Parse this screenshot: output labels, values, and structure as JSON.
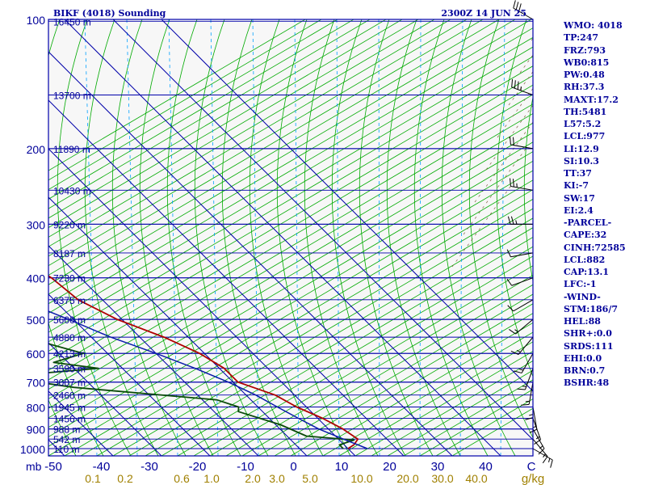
{
  "header": {
    "station": "BIKF (4018) Sounding",
    "valid_time": "2300Z 14 JUN 25"
  },
  "indices": [
    "WMO: 4018",
    "TP:247",
    "FRZ:793",
    "WB0:815",
    "PW:0.48",
    "RH:37.3",
    "MAXT:17.2",
    "TH:5481",
    "L57:5.2",
    "LCL:977",
    "LI:12.9",
    "SI:10.3",
    "TT:37",
    "KI:-7",
    "SW:17",
    "EI:2.4",
    "-PARCEL-",
    "CAPE:32",
    "CINH:72585",
    "LCL:882",
    "CAP:13.1",
    "LFC:-1",
    "-WIND-",
    "STM:186/7",
    "HEL:88",
    "SHR+:0.0",
    "SRDS:111",
    "EHI:0.0",
    "BRN:0.7",
    "BSHR:48"
  ],
  "chart_data": {
    "type": "line",
    "title": "BIKF (4018) Sounding",
    "subtitle": "2300Z 14 JUN 25",
    "pressure_unit_label": "mb",
    "temp_axis_unit": "C",
    "mixing_ratio_unit": "g/kg",
    "pressure_ticks": [
      100,
      200,
      300,
      400,
      500,
      600,
      700,
      800,
      900,
      1000
    ],
    "temp_ticks": [
      -50,
      -40,
      -30,
      -20,
      -10,
      0,
      10,
      20,
      30,
      40
    ],
    "temp_range": [
      -50,
      50
    ],
    "mixing_ratio_labels": [
      "0.1",
      "0.2",
      "0.6",
      "1.0",
      "2.0",
      "3.0",
      "5.0",
      "10.0",
      "20.0",
      "30.0",
      "40.0"
    ],
    "height_levels": [
      {
        "p": 101,
        "label": "16450 m"
      },
      {
        "p": 150,
        "label": "13700 m"
      },
      {
        "p": 200,
        "label": "11890 m"
      },
      {
        "p": 250,
        "label": "10430 m"
      },
      {
        "p": 300,
        "label": "9220 m"
      },
      {
        "p": 350,
        "label": "8187 m"
      },
      {
        "p": 400,
        "label": "7230 m"
      },
      {
        "p": 450,
        "label": "6375 m"
      },
      {
        "p": 500,
        "label": "5600 m"
      },
      {
        "p": 550,
        "label": "4880 m"
      },
      {
        "p": 600,
        "label": "4213 m"
      },
      {
        "p": 650,
        "label": "3590 m"
      },
      {
        "p": 700,
        "label": "3007 m"
      },
      {
        "p": 750,
        "label": "2460 m"
      },
      {
        "p": 800,
        "label": "1945 m"
      },
      {
        "p": 850,
        "label": "1456 m"
      },
      {
        "p": 900,
        "label": "988 m"
      },
      {
        "p": 950,
        "label": "542 m"
      },
      {
        "p": 1000,
        "label": "110 m"
      }
    ],
    "series": [
      {
        "role": "temperature",
        "color": "#b00000",
        "points": [
          [
            -17,
            100
          ],
          [
            -21,
            120
          ],
          [
            -23,
            135
          ],
          [
            -24,
            150
          ],
          [
            -28,
            200
          ],
          [
            -30,
            250
          ],
          [
            -23,
            300
          ],
          [
            -19,
            350
          ],
          [
            -16,
            400
          ],
          [
            -15,
            450
          ],
          [
            -11,
            500
          ],
          [
            -5,
            550
          ],
          [
            -1,
            600
          ],
          [
            1,
            650
          ],
          [
            1,
            700
          ],
          [
            6,
            750
          ],
          [
            8,
            800
          ],
          [
            11,
            850
          ],
          [
            13,
            900
          ],
          [
            14,
            950
          ],
          [
            12,
            980
          ],
          [
            10,
            1000
          ]
        ]
      },
      {
        "role": "dewpoint",
        "color": "#0a4a0a",
        "points": [
          [
            -34,
            100
          ],
          [
            -40,
            120
          ],
          [
            -45,
            150
          ],
          [
            -48,
            200
          ],
          [
            -45,
            250
          ],
          [
            -38,
            280
          ],
          [
            -33,
            300
          ],
          [
            -42,
            320
          ],
          [
            -31,
            360
          ],
          [
            -26,
            395
          ],
          [
            -37,
            410
          ],
          [
            -34,
            425
          ],
          [
            -39,
            440
          ],
          [
            -36,
            500
          ],
          [
            -32,
            560
          ],
          [
            -25,
            600
          ],
          [
            -33,
            630
          ],
          [
            -25,
            650
          ],
          [
            -47,
            680
          ],
          [
            -34,
            720
          ],
          [
            -7,
            770
          ],
          [
            -4,
            800
          ],
          [
            -5,
            820
          ],
          [
            1,
            880
          ],
          [
            4,
            935
          ],
          [
            13,
            955
          ],
          [
            9,
            980
          ],
          [
            9,
            1000
          ]
        ]
      },
      {
        "role": "parcel",
        "color": "#0a1aaa",
        "points": [
          [
            -58,
            140
          ],
          [
            -55,
            200
          ],
          [
            -50,
            250
          ],
          [
            -45,
            300
          ],
          [
            -39,
            350
          ],
          [
            -33,
            400
          ],
          [
            -27,
            450
          ],
          [
            -21,
            500
          ],
          [
            -16,
            550
          ],
          [
            -10,
            600
          ],
          [
            -5,
            650
          ],
          [
            -1,
            700
          ],
          [
            2,
            750
          ],
          [
            4,
            800
          ],
          [
            6,
            850
          ],
          [
            8,
            900
          ],
          [
            11,
            950
          ],
          [
            14,
            1000
          ]
        ]
      }
    ],
    "wind_barbs": [
      {
        "p": 100,
        "dir": 300,
        "spd": 30
      },
      {
        "p": 150,
        "dir": 290,
        "spd": 25
      },
      {
        "p": 200,
        "dir": 280,
        "spd": 20
      },
      {
        "p": 250,
        "dir": 280,
        "spd": 15
      },
      {
        "p": 300,
        "dir": 270,
        "spd": 15
      },
      {
        "p": 350,
        "dir": 260,
        "spd": 10
      },
      {
        "p": 400,
        "dir": 250,
        "spd": 10
      },
      {
        "p": 450,
        "dir": 240,
        "spd": 10
      },
      {
        "p": 500,
        "dir": 230,
        "spd": 5
      },
      {
        "p": 550,
        "dir": 220,
        "spd": 5
      },
      {
        "p": 600,
        "dir": 210,
        "spd": 5
      },
      {
        "p": 650,
        "dir": 200,
        "spd": 5
      },
      {
        "p": 700,
        "dir": 190,
        "spd": 5
      },
      {
        "p": 750,
        "dir": 180,
        "spd": 5
      },
      {
        "p": 800,
        "dir": 170,
        "spd": 5
      },
      {
        "p": 850,
        "dir": 160,
        "spd": 5
      },
      {
        "p": 900,
        "dir": 150,
        "spd": 5
      },
      {
        "p": 950,
        "dir": 140,
        "spd": 5
      },
      {
        "p": 1000,
        "dir": 120,
        "spd": 5
      }
    ],
    "colors": {
      "isobar": "#0000aa",
      "isotherm": "#0000aa",
      "dry_adiabat": "#00aa00",
      "moist_adiabat": "#00aa00",
      "mixing_ratio": "#00a0ff",
      "hodograph_dashes": "#806040",
      "mr_label": "#a08000",
      "axis_text": "#00009a"
    }
  }
}
